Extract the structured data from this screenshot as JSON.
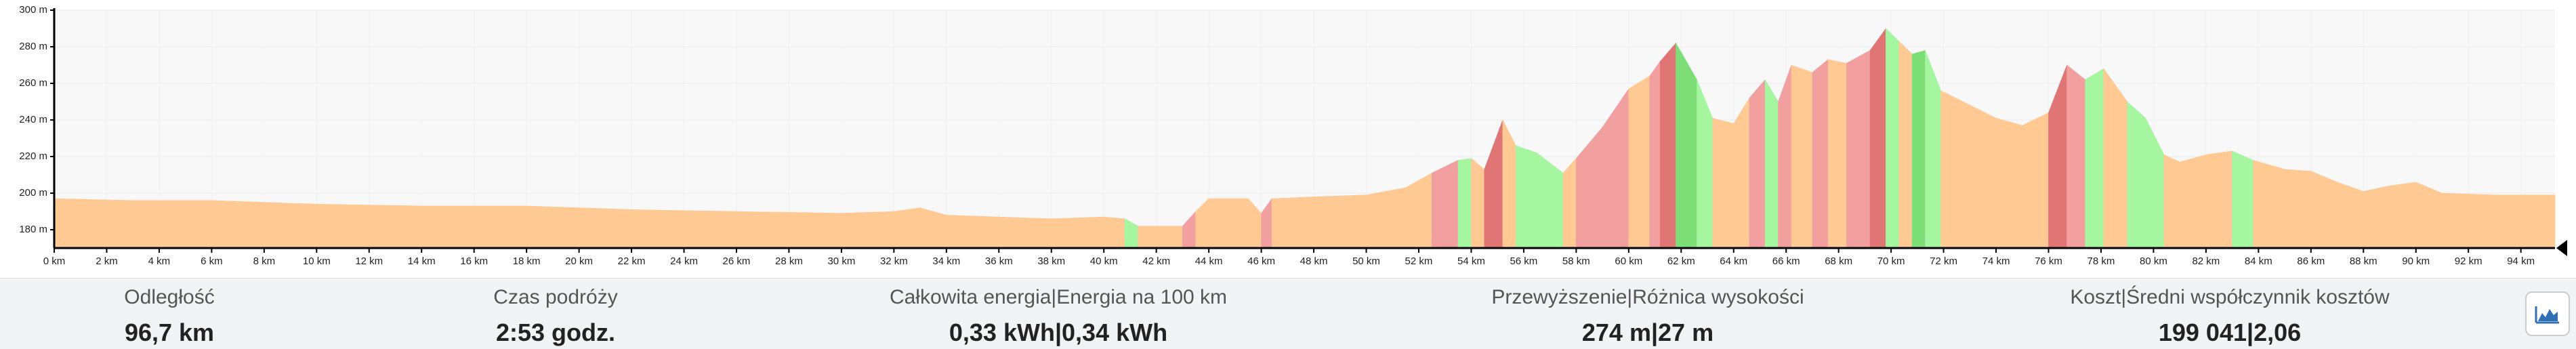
{
  "chart_data": {
    "type": "area",
    "x": [
      0,
      3,
      6,
      10,
      14,
      18,
      22,
      26,
      30,
      32,
      33,
      34,
      38,
      40,
      40.8,
      41.3,
      43,
      43.5,
      44,
      45.5,
      46,
      46.4,
      48,
      50,
      51.5,
      52.5,
      53.5,
      54,
      54.5,
      55.2,
      55.7,
      56.5,
      57.5,
      58,
      59,
      60,
      60.8,
      61.2,
      61.8,
      62.6,
      63.2,
      64,
      64.6,
      65.2,
      65.7,
      66.2,
      67,
      67.6,
      68.3,
      69.2,
      69.8,
      70.3,
      70.8,
      71.3,
      71.9,
      72.6,
      74,
      75,
      76,
      76.7,
      77.4,
      78.1,
      79,
      79.7,
      80.4,
      81,
      82,
      83,
      83.8,
      85,
      86,
      87,
      88,
      89,
      90,
      91,
      93,
      95.3
    ],
    "values": [
      197,
      196,
      196,
      194,
      193,
      193,
      191,
      190,
      189,
      190,
      192,
      188,
      186,
      187,
      186,
      182,
      182,
      190,
      197,
      197,
      189,
      197,
      198,
      199,
      203,
      211,
      218,
      219,
      213,
      240,
      226,
      222,
      211,
      219,
      236,
      257,
      264,
      272,
      282,
      262,
      241,
      238,
      252,
      262,
      250,
      270,
      266,
      273,
      271,
      278,
      290,
      283,
      276,
      278,
      256,
      251,
      241,
      237,
      244,
      270,
      262,
      268,
      250,
      241,
      221,
      217,
      221,
      223,
      218,
      213,
      212,
      206,
      201,
      204,
      206,
      200,
      199,
      199
    ],
    "segment_colors": [
      "#ffc994",
      "#ffc994",
      "#ffc994",
      "#ffc994",
      "#ffc994",
      "#ffc994",
      "#ffc994",
      "#ffc994",
      "#ffc994",
      "#ffc994",
      "#ffc994",
      "#ffc994",
      "#ffc994",
      "#ffc994",
      "#a6f5a0",
      "#ffc994",
      "#f19f9f",
      "#ffc994",
      "#ffc994",
      "#ffc994",
      "#f19f9f",
      "#ffc994",
      "#ffc994",
      "#ffc994",
      "#ffc994",
      "#f19f9f",
      "#a6f5a0",
      "#ffc994",
      "#e07575",
      "#ffc994",
      "#a6f5a0",
      "#a6f5a0",
      "#ffc994",
      "#f19f9f",
      "#f19f9f",
      "#ffc994",
      "#f19f9f",
      "#e07575",
      "#7dde78",
      "#a6f5a0",
      "#ffc994",
      "#ffc994",
      "#f19f9f",
      "#a6f5a0",
      "#f19f9f",
      "#ffc994",
      "#f19f9f",
      "#ffc994",
      "#f19f9f",
      "#e07575",
      "#a6f5a0",
      "#ffc994",
      "#7dde78",
      "#a6f5a0",
      "#ffc994",
      "#ffc994",
      "#ffc994",
      "#ffc994",
      "#e07575",
      "#f19f9f",
      "#a6f5a0",
      "#ffc994",
      "#a6f5a0",
      "#a6f5a0",
      "#ffc994",
      "#ffc994",
      "#ffc994",
      "#a6f5a0",
      "#ffc994",
      "#ffc994",
      "#ffc994",
      "#ffc994",
      "#ffc994",
      "#ffc994",
      "#ffc994",
      "#ffc994",
      "#ffc994"
    ],
    "xlim": [
      0,
      95.3
    ],
    "ylim": [
      170,
      300
    ],
    "grid": true,
    "yticks": [
      {
        "value": 180,
        "label": "180 m"
      },
      {
        "value": 200,
        "label": "200 m"
      },
      {
        "value": 220,
        "label": "220 m"
      },
      {
        "value": 240,
        "label": "240 m"
      },
      {
        "value": 260,
        "label": "260 m"
      },
      {
        "value": 280,
        "label": "280 m"
      },
      {
        "value": 300,
        "label": "300 m"
      }
    ],
    "xticks": [
      {
        "value": 0,
        "label": "0 km"
      },
      {
        "value": 2,
        "label": "2 km"
      },
      {
        "value": 4,
        "label": "4 km"
      },
      {
        "value": 6,
        "label": "6 km"
      },
      {
        "value": 8,
        "label": "8 km"
      },
      {
        "value": 10,
        "label": "10 km"
      },
      {
        "value": 12,
        "label": "12 km"
      },
      {
        "value": 14,
        "label": "14 km"
      },
      {
        "value": 16,
        "label": "16 km"
      },
      {
        "value": 18,
        "label": "18 km"
      },
      {
        "value": 20,
        "label": "20 km"
      },
      {
        "value": 22,
        "label": "22 km"
      },
      {
        "value": 24,
        "label": "24 km"
      },
      {
        "value": 26,
        "label": "26 km"
      },
      {
        "value": 28,
        "label": "28 km"
      },
      {
        "value": 30,
        "label": "30 km"
      },
      {
        "value": 32,
        "label": "32 km"
      },
      {
        "value": 34,
        "label": "34 km"
      },
      {
        "value": 36,
        "label": "36 km"
      },
      {
        "value": 38,
        "label": "38 km"
      },
      {
        "value": 40,
        "label": "40 km"
      },
      {
        "value": 42,
        "label": "42 km"
      },
      {
        "value": 44,
        "label": "44 km"
      },
      {
        "value": 46,
        "label": "46 km"
      },
      {
        "value": 48,
        "label": "48 km"
      },
      {
        "value": 50,
        "label": "50 km"
      },
      {
        "value": 52,
        "label": "52 km"
      },
      {
        "value": 54,
        "label": "54 km"
      },
      {
        "value": 56,
        "label": "56 km"
      },
      {
        "value": 58,
        "label": "58 km"
      },
      {
        "value": 60,
        "label": "60 km"
      },
      {
        "value": 62,
        "label": "62 km"
      },
      {
        "value": 64,
        "label": "64 km"
      },
      {
        "value": 66,
        "label": "66 km"
      },
      {
        "value": 68,
        "label": "68 km"
      },
      {
        "value": 70,
        "label": "70 km"
      },
      {
        "value": 72,
        "label": "72 km"
      },
      {
        "value": 74,
        "label": "74 km"
      },
      {
        "value": 76,
        "label": "76 km"
      },
      {
        "value": 78,
        "label": "78 km"
      },
      {
        "value": 80,
        "label": "80 km"
      },
      {
        "value": 82,
        "label": "82 km"
      },
      {
        "value": 84,
        "label": "84 km"
      },
      {
        "value": 86,
        "label": "86 km"
      },
      {
        "value": 88,
        "label": "88 km"
      },
      {
        "value": 90,
        "label": "90 km"
      },
      {
        "value": 92,
        "label": "92 km"
      },
      {
        "value": 94,
        "label": "94 km"
      }
    ]
  },
  "stats": [
    {
      "label": "Odległość",
      "value": "96,7 km"
    },
    {
      "label": "Czas podróży",
      "value": "2:53 godz."
    },
    {
      "label": "Całkowita energia|Energia na 100 km",
      "value": "0,33 kWh|0,34 kWh"
    },
    {
      "label": "Przewyższenie|Różnica wysokości",
      "value": "274 m|27 m"
    },
    {
      "label": "Koszt|Średni współczynnik kosztów",
      "value": "199 041|2,06"
    }
  ]
}
